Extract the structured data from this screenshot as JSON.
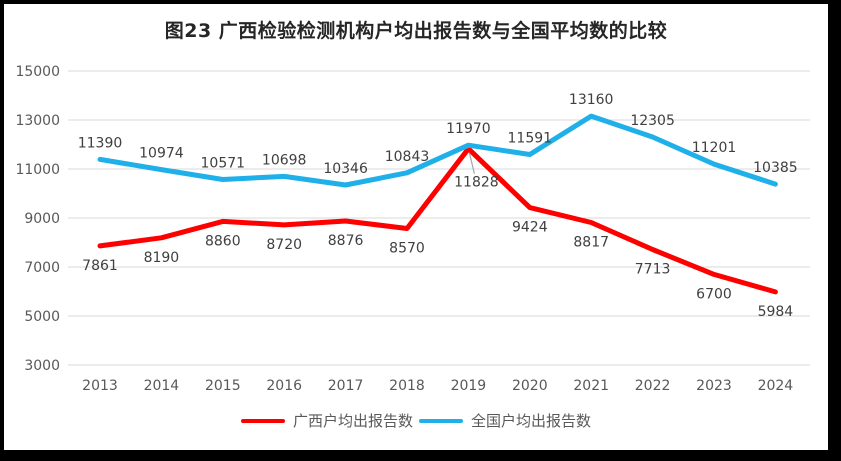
{
  "chart": {
    "title": "图23 广西检验检测机构户均出报告数与全国平均数的比较"
  },
  "chart_data": {
    "type": "line",
    "title": "图23 广西检验检测机构户均出报告数与全国平均数的比较",
    "categories": [
      "2013",
      "2014",
      "2015",
      "2016",
      "2017",
      "2018",
      "2019",
      "2020",
      "2021",
      "2022",
      "2023",
      "2024"
    ],
    "series": [
      {
        "name": "广西户均出报告数",
        "color": "#FF0000",
        "label_position": "below",
        "values": [
          7861,
          8190,
          8860,
          8720,
          8876,
          8570,
          11828,
          9424,
          8817,
          7713,
          6700,
          5984
        ]
      },
      {
        "name": "全国户均出报告数",
        "color": "#1FB0E9",
        "label_position": "above",
        "values": [
          11390,
          10974,
          10571,
          10698,
          10346,
          10843,
          11970,
          11591,
          13160,
          12305,
          11201,
          10385
        ]
      }
    ],
    "yticks": [
      15000,
      13000,
      11000,
      9000,
      7000,
      5000,
      3000
    ],
    "ylim": [
      3000,
      15000
    ],
    "xlabel": "",
    "ylabel": "",
    "grid": "horizontal",
    "legend_position": "bottom",
    "callouts": [
      {
        "series": 0,
        "index": 6,
        "dx": 8,
        "dy": 38,
        "leader_color": "#A6A6A6"
      }
    ],
    "colors": {
      "gridline": "#D9D9D9",
      "axis_label": "#595959",
      "data_label": "#404040",
      "title": "#262626",
      "frame_border": "#000000",
      "background": "#FFFFFF"
    }
  }
}
